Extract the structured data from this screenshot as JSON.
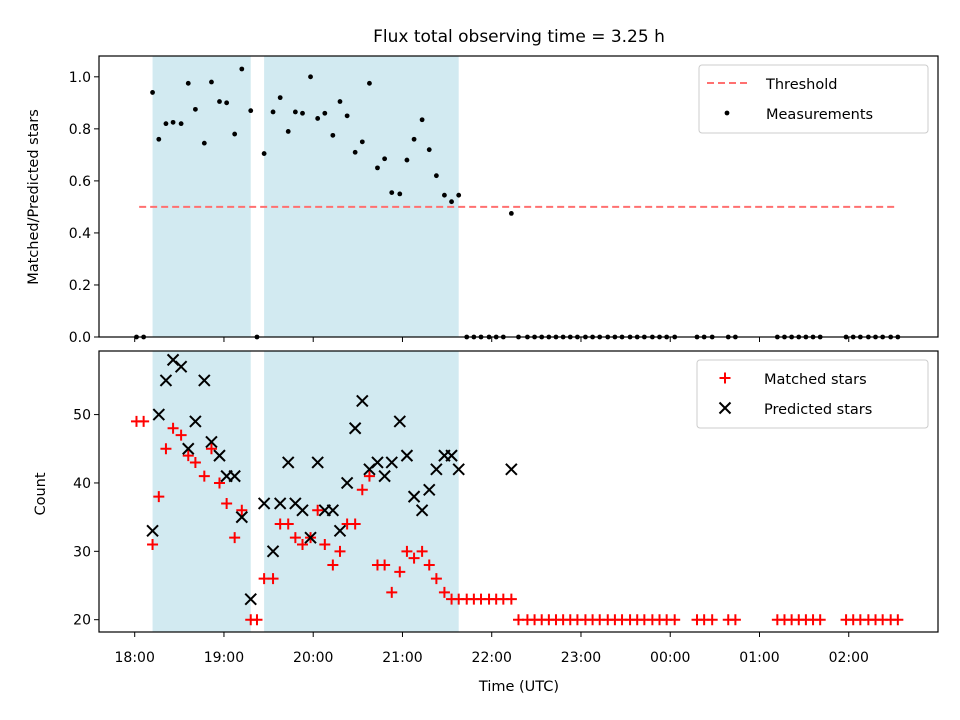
{
  "chart_data": [
    {
      "type": "scatter",
      "title": "Flux total observing time = 3.25 h",
      "xlabel": "",
      "ylabel": "Matched/Predicted stars",
      "xlim": [
        17.6,
        27.0
      ],
      "ylim": [
        0.0,
        1.08
      ],
      "yticks": [
        "0.0",
        "0.2",
        "0.4",
        "0.6",
        "0.8",
        "1.0"
      ],
      "grid": false,
      "legend": "top-right",
      "shaded_intervals": [
        [
          18.2,
          19.3
        ],
        [
          19.45,
          21.63
        ]
      ],
      "shade_color": "#add8e6",
      "series": [
        {
          "name": "Threshold",
          "style": "dashed-line",
          "color": "#ff7070",
          "x": [
            18.05,
            26.55
          ],
          "y": [
            0.5,
            0.5
          ]
        },
        {
          "name": "Measurements",
          "style": "dot",
          "color": "#000000",
          "x": [
            18.02,
            18.1,
            18.2,
            18.27,
            18.35,
            18.43,
            18.52,
            18.6,
            18.68,
            18.78,
            18.86,
            18.95,
            19.03,
            19.12,
            19.2,
            19.3,
            19.37,
            19.45,
            19.55,
            19.63,
            19.72,
            19.8,
            19.88,
            19.97,
            20.05,
            20.13,
            20.22,
            20.3,
            20.38,
            20.47,
            20.55,
            20.63,
            20.72,
            20.8,
            20.88,
            20.97,
            21.05,
            21.13,
            21.22,
            21.3,
            21.38,
            21.47,
            21.55,
            21.63,
            21.72,
            21.8,
            21.88,
            21.97,
            22.05,
            22.13,
            22.22,
            22.3,
            22.4,
            22.48,
            22.56,
            22.64,
            22.72,
            22.8,
            22.88,
            22.96,
            23.05,
            23.13,
            23.21,
            23.3,
            23.38,
            23.46,
            23.55,
            23.63,
            23.71,
            23.8,
            23.88,
            23.96,
            24.05,
            24.3,
            24.38,
            24.47,
            24.65,
            24.73,
            25.2,
            25.28,
            25.36,
            25.44,
            25.52,
            25.6,
            25.68,
            25.97,
            26.05,
            26.13,
            26.22,
            26.3,
            26.38,
            26.47,
            26.55
          ],
          "y": [
            0.0,
            0.0,
            0.94,
            0.76,
            0.82,
            0.825,
            0.82,
            0.975,
            0.875,
            0.745,
            0.98,
            0.905,
            0.9,
            0.78,
            1.03,
            0.87,
            0.0,
            0.705,
            0.865,
            0.92,
            0.79,
            0.865,
            0.86,
            1.0,
            0.84,
            0.86,
            0.775,
            0.905,
            0.85,
            0.71,
            0.75,
            0.975,
            0.65,
            0.685,
            0.555,
            0.55,
            0.68,
            0.76,
            0.835,
            0.72,
            0.62,
            0.545,
            0.52,
            0.545,
            0.0,
            0.0,
            0.0,
            0.0,
            0.0,
            0.0,
            0.475,
            0.0,
            0.0,
            0.0,
            0.0,
            0.0,
            0.0,
            0.0,
            0.0,
            0.0,
            0.0,
            0.0,
            0.0,
            0.0,
            0.0,
            0.0,
            0.0,
            0.0,
            0.0,
            0.0,
            0.0,
            0.0,
            0.0,
            0.0,
            0.0,
            0.0,
            0.0,
            0.0,
            0.0,
            0.0,
            0.0,
            0.0,
            0.0,
            0.0,
            0.0,
            0.0,
            0.0,
            0.0,
            0.0,
            0.0,
            0.0,
            0.0,
            0.0
          ]
        }
      ]
    },
    {
      "type": "scatter",
      "title": "",
      "xlabel": "Time (UTC)",
      "ylabel": "Count",
      "xlim": [
        17.6,
        27.0
      ],
      "ylim": [
        18.2,
        59.3
      ],
      "yticks": [
        "20",
        "30",
        "40",
        "50"
      ],
      "xticks": [
        {
          "v": 18,
          "label": "18:00"
        },
        {
          "v": 19,
          "label": "19:00"
        },
        {
          "v": 20,
          "label": "20:00"
        },
        {
          "v": 21,
          "label": "21:00"
        },
        {
          "v": 22,
          "label": "22:00"
        },
        {
          "v": 23,
          "label": "23:00"
        },
        {
          "v": 24,
          "label": "00:00"
        },
        {
          "v": 25,
          "label": "01:00"
        },
        {
          "v": 26,
          "label": "02:00"
        }
      ],
      "grid": false,
      "legend": "top-right",
      "shaded_intervals": [
        [
          18.2,
          19.3
        ],
        [
          19.45,
          21.63
        ]
      ],
      "shade_color": "#add8e6",
      "series": [
        {
          "name": "Matched stars",
          "marker": "plus",
          "color": "#ff0000",
          "x": [
            18.02,
            18.1,
            18.2,
            18.27,
            18.35,
            18.43,
            18.52,
            18.6,
            18.68,
            18.78,
            18.86,
            18.95,
            19.03,
            19.12,
            19.2,
            19.3,
            19.37,
            19.45,
            19.55,
            19.63,
            19.72,
            19.8,
            19.88,
            19.97,
            20.05,
            20.13,
            20.22,
            20.3,
            20.38,
            20.47,
            20.55,
            20.63,
            20.72,
            20.8,
            20.88,
            20.97,
            21.05,
            21.13,
            21.22,
            21.3,
            21.38,
            21.47,
            21.55,
            21.63,
            21.72,
            21.8,
            21.88,
            21.97,
            22.05,
            22.13,
            22.22,
            22.3,
            22.4,
            22.48,
            22.56,
            22.64,
            22.72,
            22.8,
            22.88,
            22.96,
            23.05,
            23.13,
            23.21,
            23.3,
            23.38,
            23.46,
            23.55,
            23.63,
            23.71,
            23.8,
            23.88,
            23.96,
            24.05,
            24.3,
            24.38,
            24.47,
            24.65,
            24.73,
            25.2,
            25.28,
            25.36,
            25.44,
            25.52,
            25.6,
            25.68,
            25.97,
            26.05,
            26.13,
            26.22,
            26.3,
            26.38,
            26.47,
            26.55
          ],
          "y": [
            49,
            49,
            31,
            38,
            45,
            48,
            47,
            44,
            43,
            41,
            45,
            40,
            37,
            32,
            36,
            20,
            20,
            26,
            26,
            34,
            34,
            32,
            31,
            32,
            36,
            31,
            28,
            30,
            34,
            34,
            39,
            41,
            28,
            28,
            24,
            27,
            30,
            29,
            30,
            28,
            26,
            24,
            23,
            23,
            23,
            23,
            23,
            23,
            23,
            23,
            23,
            20,
            20,
            20,
            20,
            20,
            20,
            20,
            20,
            20,
            20,
            20,
            20,
            20,
            20,
            20,
            20,
            20,
            20,
            20,
            20,
            20,
            20,
            20,
            20,
            20,
            20,
            20,
            20,
            20,
            20,
            20,
            20,
            20,
            20,
            20,
            20,
            20,
            20,
            20,
            20,
            20,
            20
          ]
        },
        {
          "name": "Predicted stars",
          "marker": "x",
          "color": "#000000",
          "x": [
            18.2,
            18.27,
            18.35,
            18.43,
            18.52,
            18.6,
            18.68,
            18.78,
            18.86,
            18.95,
            19.03,
            19.12,
            19.2,
            19.3,
            19.45,
            19.55,
            19.63,
            19.72,
            19.8,
            19.88,
            19.97,
            20.05,
            20.13,
            20.22,
            20.3,
            20.38,
            20.47,
            20.55,
            20.63,
            20.72,
            20.8,
            20.88,
            20.97,
            21.05,
            21.13,
            21.22,
            21.3,
            21.38,
            21.47,
            21.55,
            21.63,
            22.22
          ],
          "y": [
            33,
            50,
            55,
            58,
            57,
            45,
            49,
            55,
            46,
            44,
            41,
            41,
            35,
            23,
            37,
            30,
            37,
            43,
            37,
            36,
            32,
            43,
            36,
            36,
            33,
            40,
            48,
            52,
            42,
            43,
            41,
            43,
            49,
            44,
            38,
            36,
            39,
            42,
            44,
            44,
            42,
            42
          ]
        }
      ]
    }
  ]
}
